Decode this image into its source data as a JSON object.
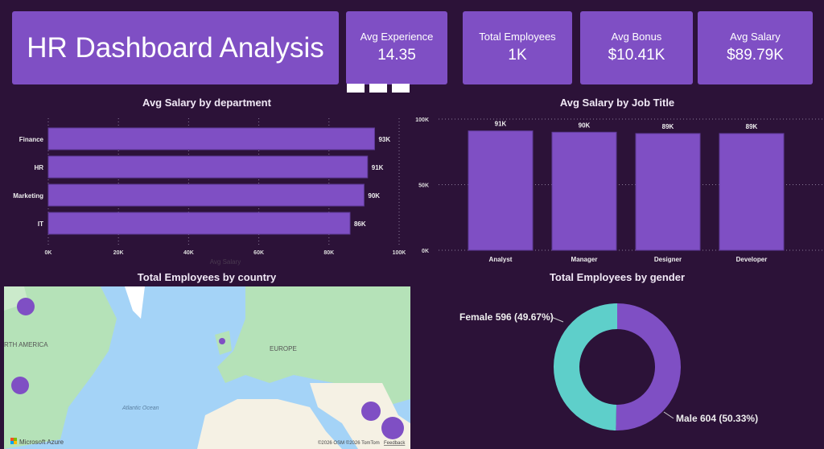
{
  "header": {
    "title": "HR Dashboard Analysis"
  },
  "kpis": [
    {
      "label": "Avg Experience",
      "value": "14.35"
    },
    {
      "label": "Total Employees",
      "value": "1K"
    },
    {
      "label": "Avg Bonus",
      "value": "$10.41K"
    },
    {
      "label": "Avg Salary",
      "value": "$89.79K"
    }
  ],
  "colors": {
    "background": "#2c1238",
    "accent": "#7f4fc4",
    "teal": "#5ecfca"
  },
  "chart_data": [
    {
      "type": "bar",
      "orientation": "horizontal",
      "title": "Avg Salary by department",
      "xlabel": "Avg Salary",
      "categories": [
        "Finance",
        "HR",
        "Marketing",
        "IT"
      ],
      "values": [
        93,
        91,
        90,
        86
      ],
      "labels": [
        "93K",
        "91K",
        "90K",
        "86K"
      ],
      "xlim": [
        0,
        100
      ],
      "ticks": [
        "0K",
        "20K",
        "40K",
        "60K",
        "80K",
        "100K"
      ],
      "grid": true
    },
    {
      "type": "bar",
      "title": "Avg Salary by Job Title",
      "categories": [
        "Analyst",
        "Manager",
        "Designer",
        "Developer"
      ],
      "values": [
        91,
        90,
        89,
        89
      ],
      "labels": [
        "91K",
        "90K",
        "89K",
        "89K"
      ],
      "ylim": [
        0,
        100
      ],
      "ticks": [
        "0K",
        "50K",
        "100K"
      ],
      "grid": true
    },
    {
      "type": "pie",
      "donut": true,
      "title": "Total Employees by gender",
      "slices": [
        {
          "name": "Male",
          "value": 604,
          "label": "Male 604 (50.33%)",
          "color": "#7f4fc4"
        },
        {
          "name": "Female",
          "value": 596,
          "label": "Female 596 (49.67%)",
          "color": "#5ecfca"
        }
      ]
    }
  ],
  "map": {
    "title": "Total Employees by country",
    "labels": {
      "na": "RTH AMERICA",
      "eu": "EUROPE",
      "ocean": "Atlantic Ocean"
    },
    "attribution": "Microsoft Azure",
    "copyright": "©2026 OSM ©2026 TomTom",
    "feedback": "Feedback"
  }
}
